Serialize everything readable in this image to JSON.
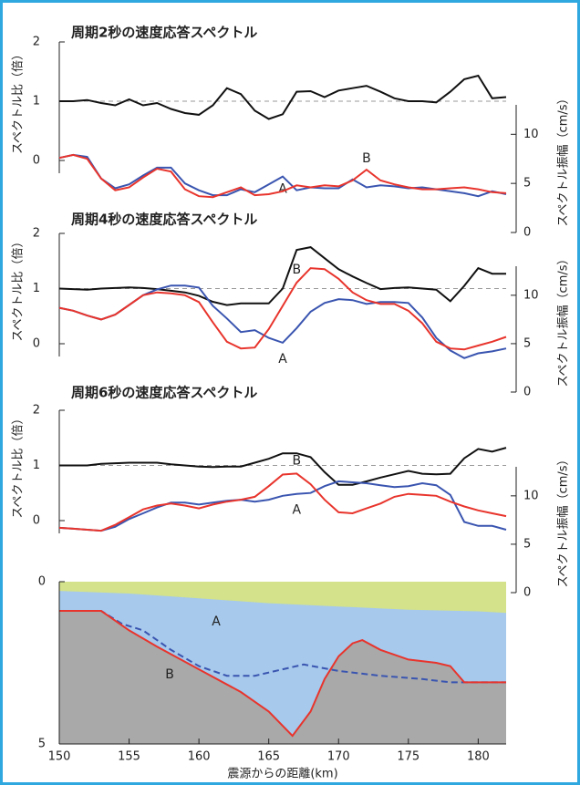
{
  "chart_data": [
    {
      "type": "line",
      "title": "周期2秒の速度応答スペクトル",
      "ylabel": "スペクトル比（倍）",
      "y2label": "スペクトル振幅（cm/s）",
      "xlim": [
        150,
        182
      ],
      "ylim": [
        0,
        2
      ],
      "yticks": [
        0,
        1,
        2
      ],
      "y2lim": [
        0,
        13
      ],
      "y2ticks": [
        0,
        5,
        10
      ],
      "refline": 1,
      "x": [
        150,
        151,
        152,
        153,
        154,
        155,
        156,
        157,
        158,
        159,
        160,
        161,
        162,
        163,
        164,
        165,
        166,
        167,
        168,
        169,
        170,
        171,
        172,
        173,
        174,
        175,
        176,
        177,
        178,
        179,
        180,
        181,
        182
      ],
      "series": [
        {
          "color": "#111111",
          "values": [
            1.0,
            1.0,
            1.02,
            0.97,
            0.93,
            1.03,
            0.93,
            0.97,
            0.87,
            0.8,
            0.77,
            0.93,
            1.22,
            1.12,
            0.84,
            0.7,
            0.78,
            1.16,
            1.17,
            1.07,
            1.18,
            1.22,
            1.26,
            1.16,
            1.05,
            1.0,
            1.0,
            0.98,
            1.16,
            1.37,
            1.43,
            1.05,
            1.07
          ]
        },
        {
          "name": "A",
          "color": "#3a55b0",
          "axis": "y2",
          "values": [
            7.6,
            7.9,
            7.7,
            5.5,
            4.5,
            4.9,
            5.8,
            6.6,
            6.6,
            5.0,
            4.3,
            3.8,
            3.8,
            4.4,
            4.1,
            4.9,
            5.7,
            4.3,
            4.6,
            4.5,
            4.5,
            5.4,
            4.6,
            4.8,
            4.7,
            4.5,
            4.6,
            4.4,
            4.2,
            4.0,
            3.7,
            4.2,
            3.9
          ]
        },
        {
          "name": "B",
          "color": "#e8342c",
          "axis": "y2",
          "values": [
            7.6,
            7.9,
            7.5,
            5.5,
            4.3,
            4.6,
            5.6,
            6.5,
            6.2,
            4.4,
            3.7,
            3.6,
            4.1,
            4.6,
            3.8,
            3.9,
            4.2,
            4.8,
            4.6,
            4.8,
            4.7,
            5.3,
            6.4,
            5.3,
            4.9,
            4.6,
            4.4,
            4.4,
            4.5,
            4.6,
            4.4,
            4.1,
            4.0
          ]
        }
      ]
    },
    {
      "type": "line",
      "title": "周期4秒の速度応答スペクトル",
      "ylabel": "スペクトル比（倍）",
      "y2label": "スペクトル振幅（cm/s）",
      "xlim": [
        150,
        182
      ],
      "ylim": [
        0,
        2
      ],
      "yticks": [
        0,
        1,
        2
      ],
      "y2lim": [
        0,
        13
      ],
      "y2ticks": [
        0,
        5,
        10
      ],
      "refline": 1,
      "x": [
        150,
        151,
        152,
        153,
        154,
        155,
        156,
        157,
        158,
        159,
        160,
        161,
        162,
        163,
        164,
        165,
        166,
        167,
        168,
        169,
        170,
        171,
        172,
        173,
        174,
        175,
        176,
        177,
        178,
        179,
        180,
        181,
        182
      ],
      "series": [
        {
          "color": "#111111",
          "values": [
            1.0,
            0.99,
            0.98,
            1.0,
            1.01,
            1.02,
            1.01,
            0.99,
            0.96,
            0.93,
            0.87,
            0.76,
            0.7,
            0.73,
            0.73,
            0.73,
            1.0,
            1.7,
            1.75,
            1.55,
            1.35,
            1.22,
            1.1,
            0.99,
            1.01,
            1.02,
            1.0,
            0.98,
            0.77,
            1.05,
            1.37,
            1.27,
            1.27
          ]
        },
        {
          "name": "A",
          "color": "#3a55b0",
          "axis": "y2",
          "values": [
            8.7,
            8.4,
            7.9,
            7.5,
            8.0,
            9.0,
            10.0,
            10.6,
            11.0,
            11.0,
            10.8,
            8.9,
            7.6,
            6.2,
            6.4,
            5.6,
            5.1,
            6.6,
            8.3,
            9.2,
            9.6,
            9.5,
            9.1,
            9.3,
            9.3,
            9.2,
            7.7,
            5.6,
            4.3,
            3.5,
            4.0,
            4.2,
            4.5
          ]
        },
        {
          "name": "B",
          "color": "#e8342c",
          "axis": "y2",
          "values": [
            8.7,
            8.4,
            7.9,
            7.5,
            8.0,
            9.0,
            10.0,
            10.3,
            10.2,
            10.0,
            9.3,
            7.2,
            5.2,
            4.5,
            4.6,
            6.5,
            8.9,
            11.3,
            12.8,
            12.7,
            11.7,
            10.3,
            9.5,
            9.1,
            9.1,
            8.4,
            7.1,
            5.2,
            4.5,
            4.4,
            4.8,
            5.2,
            5.7
          ]
        }
      ]
    },
    {
      "type": "line",
      "title": "周期6秒の速度応答スペクトル",
      "ylabel": "スペクトル比（倍）",
      "y2label": "スペクトル振幅（cm/s）",
      "xlim": [
        150,
        182
      ],
      "ylim": [
        0,
        2
      ],
      "yticks": [
        0,
        1,
        2
      ],
      "y2lim": [
        0,
        13
      ],
      "y2ticks": [
        0,
        5,
        10
      ],
      "refline": 1,
      "x": [
        150,
        151,
        152,
        153,
        154,
        155,
        156,
        157,
        158,
        159,
        160,
        161,
        162,
        163,
        164,
        165,
        166,
        167,
        168,
        169,
        170,
        171,
        172,
        173,
        174,
        175,
        176,
        177,
        178,
        179,
        180,
        181,
        182
      ],
      "series": [
        {
          "color": "#111111",
          "values": [
            1.0,
            1.0,
            1.0,
            1.03,
            1.04,
            1.05,
            1.05,
            1.05,
            1.02,
            1.0,
            0.98,
            0.97,
            0.98,
            0.98,
            1.05,
            1.12,
            1.22,
            1.22,
            1.15,
            0.88,
            0.65,
            0.65,
            0.71,
            0.78,
            0.84,
            0.9,
            0.85,
            0.84,
            0.85,
            1.13,
            1.3,
            1.25,
            1.32
          ]
        },
        {
          "name": "A",
          "color": "#3a55b0",
          "axis": "y2",
          "values": [
            6.7,
            6.6,
            6.5,
            6.4,
            6.8,
            7.6,
            8.2,
            8.8,
            9.3,
            9.3,
            9.1,
            9.3,
            9.5,
            9.6,
            9.4,
            9.6,
            10.0,
            10.2,
            10.3,
            11.0,
            11.5,
            11.4,
            11.3,
            11.1,
            10.9,
            11.0,
            11.3,
            11.1,
            10.1,
            7.3,
            6.9,
            6.9,
            6.5
          ]
        },
        {
          "name": "B",
          "color": "#e8342c",
          "axis": "y2",
          "values": [
            6.7,
            6.6,
            6.5,
            6.4,
            7.0,
            7.8,
            8.6,
            9.0,
            9.2,
            9.0,
            8.7,
            9.1,
            9.4,
            9.6,
            9.9,
            11.0,
            12.2,
            12.3,
            11.2,
            9.6,
            8.3,
            8.2,
            8.7,
            9.2,
            9.9,
            10.2,
            10.1,
            10.0,
            9.4,
            8.9,
            8.5,
            8.2,
            7.9
          ]
        }
      ]
    },
    {
      "type": "section",
      "xlabel": "震源からの距離(km)",
      "xlim": [
        150,
        182
      ],
      "xticks": [
        150,
        155,
        160,
        165,
        170,
        175,
        180
      ],
      "ylim": [
        0,
        5
      ],
      "yticks": [
        0,
        5
      ],
      "inverted": true,
      "background": "#a6c9ec",
      "layer": {
        "color": "#d3e28b",
        "x": [
          150,
          155,
          160,
          165,
          170,
          175,
          180,
          182
        ],
        "values": [
          0.27,
          0.35,
          0.5,
          0.65,
          0.75,
          0.85,
          0.9,
          0.95
        ]
      },
      "series": [
        {
          "name": "A",
          "color": "#3a55b0",
          "dash": true,
          "x": [
            150,
            153,
            154.5,
            156,
            158,
            160,
            162,
            164,
            166,
            167.5,
            170,
            173,
            176,
            178,
            182
          ],
          "values": [
            0.9,
            0.9,
            1.3,
            1.5,
            2.1,
            2.6,
            2.9,
            2.9,
            2.7,
            2.55,
            2.75,
            2.9,
            3.0,
            3.1,
            3.1
          ]
        },
        {
          "name": "B",
          "color": "#e8342c",
          "fill": "#a9a9a9",
          "x": [
            150,
            153,
            155,
            157,
            160,
            163,
            165,
            166.7,
            168,
            169,
            170,
            171,
            171.7,
            173,
            175,
            177,
            178,
            179,
            182
          ],
          "values": [
            0.9,
            0.9,
            1.5,
            2.0,
            2.7,
            3.4,
            4.0,
            4.75,
            4.0,
            3.0,
            2.3,
            1.9,
            1.8,
            2.1,
            2.4,
            2.5,
            2.6,
            3.1,
            3.1
          ]
        }
      ]
    }
  ]
}
